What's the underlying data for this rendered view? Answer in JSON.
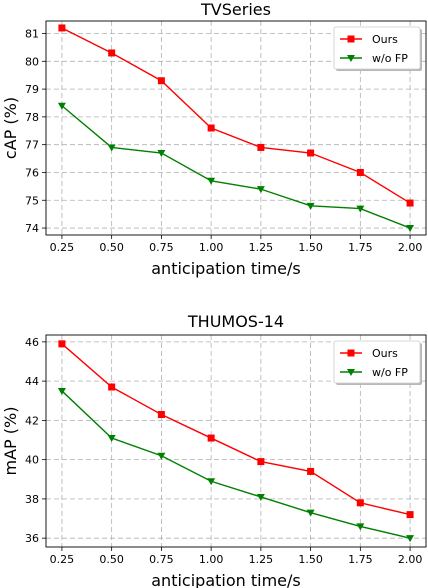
{
  "chart_data": [
    {
      "type": "line",
      "title": "TVSeries",
      "xlabel": "anticipation time/s",
      "ylabel": "cAP (%)",
      "x": [
        0.25,
        0.5,
        0.75,
        1.0,
        1.25,
        1.5,
        1.75,
        2.0
      ],
      "x_tick_labels": [
        "0.25",
        "0.50",
        "0.75",
        "1.00",
        "1.25",
        "1.50",
        "1.75",
        "2.00"
      ],
      "y_ticks": [
        74,
        75,
        76,
        77,
        78,
        79,
        80,
        81
      ],
      "xlim": [
        0.17,
        2.08
      ],
      "ylim": [
        73.75,
        81.45
      ],
      "grid": true,
      "legend_position": "top-right",
      "series": [
        {
          "name": "Ours",
          "color": "#ff0000",
          "marker": "square",
          "values": [
            81.2,
            80.3,
            79.3,
            77.6,
            76.9,
            76.7,
            76.0,
            74.9
          ]
        },
        {
          "name": "w/o FP",
          "color": "#008000",
          "marker": "triangle-down",
          "values": [
            78.4,
            76.9,
            76.7,
            75.7,
            75.4,
            74.8,
            74.7,
            74.0
          ]
        }
      ]
    },
    {
      "type": "line",
      "title": "THUMOS-14",
      "xlabel": "anticipation time/s",
      "ylabel": "mAP (%)",
      "x": [
        0.25,
        0.5,
        0.75,
        1.0,
        1.25,
        1.5,
        1.75,
        2.0
      ],
      "x_tick_labels": [
        "0.25",
        "0.50",
        "0.75",
        "1.00",
        "1.25",
        "1.50",
        "1.75",
        "2.00"
      ],
      "y_ticks": [
        36,
        38,
        40,
        42,
        44,
        46
      ],
      "xlim": [
        0.17,
        2.08
      ],
      "ylim": [
        35.55,
        46.35
      ],
      "grid": true,
      "legend_position": "top-right",
      "series": [
        {
          "name": "Ours",
          "color": "#ff0000",
          "marker": "square",
          "values": [
            45.9,
            43.7,
            42.3,
            41.1,
            39.9,
            39.4,
            37.8,
            37.2
          ]
        },
        {
          "name": "w/o FP",
          "color": "#008000",
          "marker": "triangle-down",
          "values": [
            43.5,
            41.1,
            40.2,
            38.9,
            38.1,
            37.3,
            36.6,
            36.0
          ]
        }
      ]
    }
  ]
}
